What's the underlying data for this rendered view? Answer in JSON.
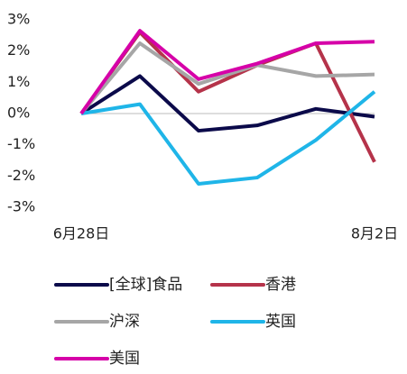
{
  "chart_data": {
    "type": "line",
    "x": [
      "6月28日",
      null,
      null,
      null,
      null,
      "8月2日"
    ],
    "series": [
      {
        "name": "[全球]食品",
        "color": "#0b0a4a",
        "values": [
          0,
          1.2,
          -0.55,
          -0.38,
          0.15,
          -0.1
        ]
      },
      {
        "name": "香港",
        "color": "#b5334a",
        "values": [
          0,
          2.6,
          0.7,
          1.55,
          2.25,
          -1.55
        ]
      },
      {
        "name": "沪深",
        "color": "#a6a6a6",
        "values": [
          0,
          2.25,
          0.95,
          1.55,
          1.2,
          1.25
        ]
      },
      {
        "name": "英国",
        "color": "#1fb5e8",
        "values": [
          0,
          0.3,
          -2.25,
          -2.05,
          -0.85,
          0.7
        ]
      },
      {
        "name": "美国",
        "color": "#d600a8",
        "values": [
          0,
          2.65,
          1.1,
          1.6,
          2.25,
          2.3
        ]
      }
    ],
    "ylim": [
      -3,
      3
    ],
    "yticks": [
      {
        "value": 3,
        "label": "3%"
      },
      {
        "value": 2,
        "label": "2%"
      },
      {
        "value": 1,
        "label": "1%"
      },
      {
        "value": 0,
        "label": "0%"
      },
      {
        "value": -1,
        "label": "-1%"
      },
      {
        "value": -2,
        "label": "-2%"
      },
      {
        "value": -3,
        "label": "-3%"
      }
    ],
    "legend": "bottom"
  }
}
